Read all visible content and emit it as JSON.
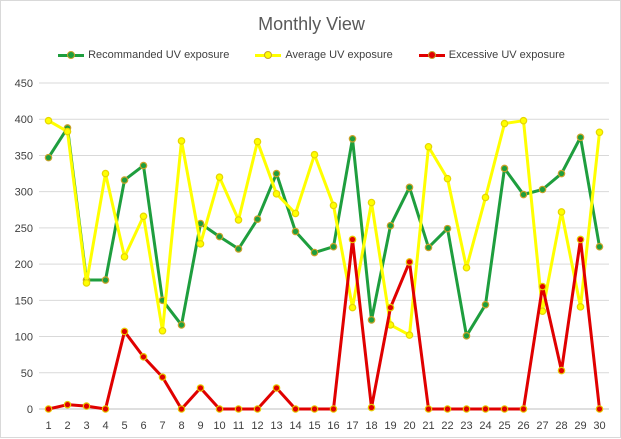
{
  "chart_data": {
    "type": "line",
    "title": "Monthly View",
    "xlabel": "",
    "ylabel": "",
    "x": [
      1,
      2,
      3,
      4,
      5,
      6,
      7,
      8,
      9,
      10,
      11,
      12,
      13,
      14,
      15,
      16,
      17,
      18,
      19,
      20,
      21,
      22,
      23,
      24,
      25,
      26,
      27,
      28,
      29,
      30
    ],
    "ylim": [
      0,
      450
    ],
    "yticks": [
      0,
      50,
      100,
      150,
      200,
      250,
      300,
      350,
      400,
      450
    ],
    "grid": true,
    "legend": "top",
    "series": [
      {
        "name": "Recommanded UV exposure",
        "color": "#1e9e3e",
        "marker_color": "#c9a227",
        "values": [
          347,
          388,
          178,
          178,
          316,
          336,
          150,
          116,
          256,
          238,
          221,
          262,
          325,
          245,
          216,
          224,
          373,
          123,
          253,
          306,
          223,
          249,
          101,
          144,
          332,
          296,
          303,
          325,
          375,
          224
        ]
      },
      {
        "name": "Average UV exposure",
        "color": "#ffff00",
        "marker_color": "#e6d600",
        "values": [
          398,
          383,
          174,
          325,
          210,
          266,
          108,
          370,
          228,
          320,
          261,
          369,
          297,
          270,
          351,
          281,
          140,
          285,
          116,
          102,
          362,
          318,
          195,
          292,
          394,
          398,
          135,
          272,
          141,
          382
        ]
      },
      {
        "name": "Excessive UV exposure",
        "color": "#e00000",
        "marker_color": "#e6c800",
        "values": [
          0,
          6,
          4,
          0,
          107,
          72,
          44,
          0,
          29,
          0,
          0,
          0,
          29,
          0,
          0,
          0,
          234,
          2,
          140,
          203,
          0,
          0,
          0,
          0,
          0,
          0,
          169,
          53,
          234,
          0
        ]
      }
    ]
  }
}
